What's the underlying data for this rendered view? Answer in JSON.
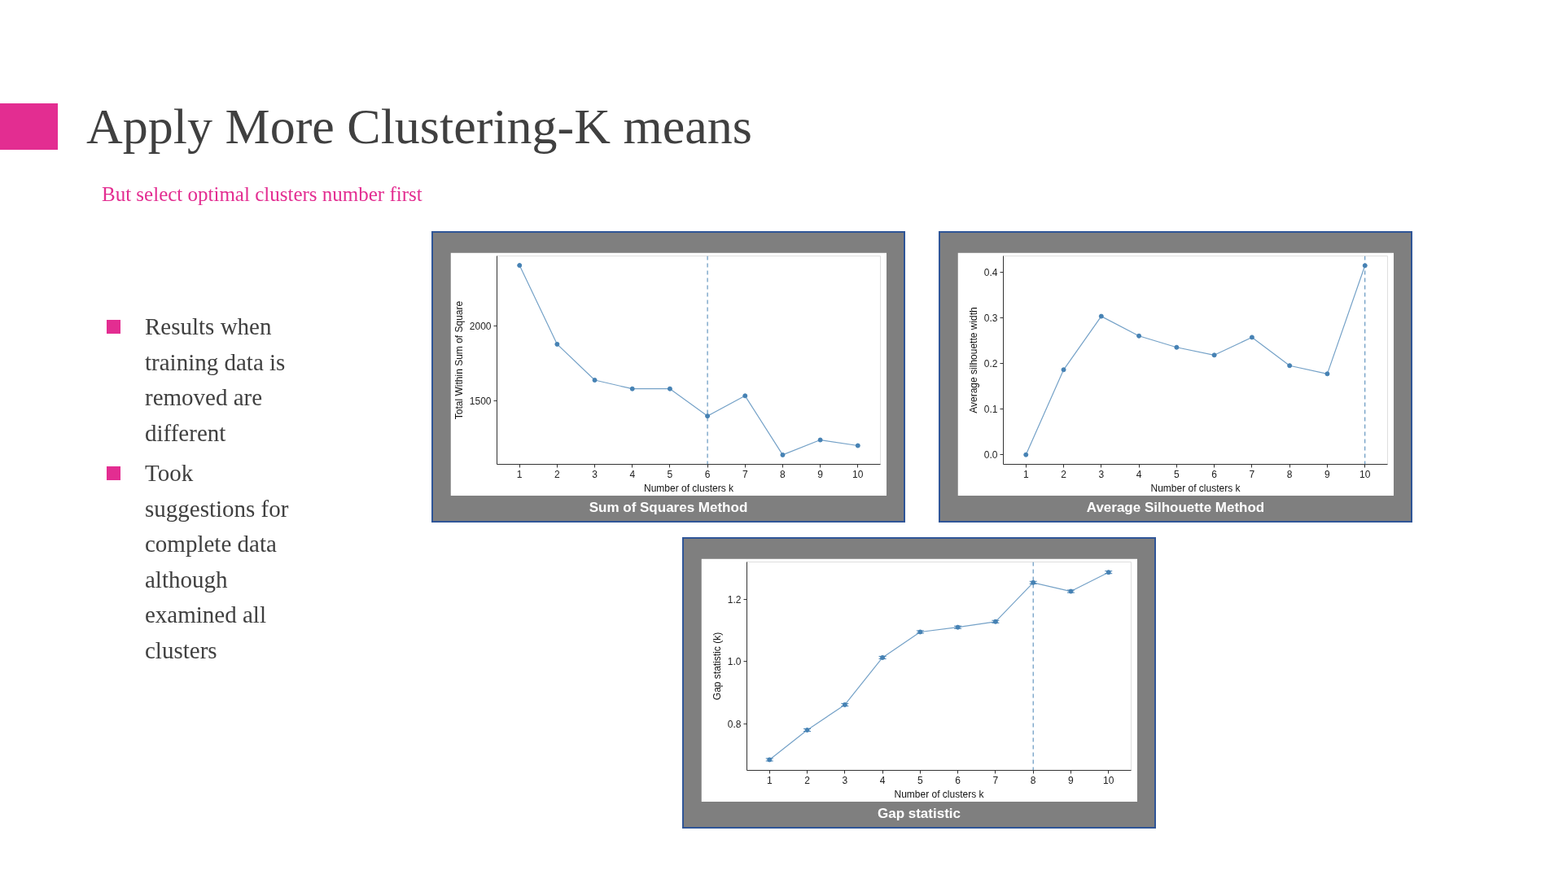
{
  "chart_data": [
    {
      "type": "other",
      "title": "Apply More Clustering-K means",
      "subtitle": "But select optimal clusters number first",
      "annotations": [
        "Results when training data is removed are different",
        "Took suggestions for complete data although examined all clusters"
      ]
    },
    {
      "type": "line",
      "title": "Sum of Squares Method",
      "xlabel": "Number of clusters k",
      "ylabel": "Total Within Sum of Square",
      "x": [
        1,
        2,
        3,
        4,
        5,
        6,
        7,
        8,
        9,
        10
      ],
      "xlim": [
        0.4,
        10.6
      ],
      "xticks": [
        1,
        2,
        3,
        4,
        5,
        6,
        7,
        8,
        9,
        10
      ],
      "ylim": [
        1075,
        2468
      ],
      "yticks": [
        1500,
        2000
      ],
      "marker": "circle",
      "series": [
        {
          "color": "#4682b4",
          "values": [
            2405,
            1878,
            1638,
            1580,
            1580,
            1398,
            1533,
            1138,
            1238,
            1200
          ]
        }
      ],
      "ref_lines": [
        {
          "axis": "x",
          "value": 6,
          "color": "#4682b4",
          "line_style": "dashed"
        }
      ]
    },
    {
      "type": "line",
      "title": "Average Silhouette Method",
      "xlabel": "Number of clusters k",
      "ylabel": "Average silhouette width",
      "x": [
        1,
        2,
        3,
        4,
        5,
        6,
        7,
        8,
        9,
        10
      ],
      "xlim": [
        0.4,
        10.6
      ],
      "xticks": [
        1,
        2,
        3,
        4,
        5,
        6,
        7,
        8,
        9,
        10
      ],
      "ylim": [
        -0.021,
        0.435
      ],
      "yticks": [
        {
          "value": 0,
          "label": "0.0"
        },
        0.1,
        0.2,
        0.3,
        0.4
      ],
      "marker": "circle",
      "series": [
        {
          "color": "#4682b4",
          "values": [
            0.0,
            0.186,
            0.303,
            0.26,
            0.235,
            0.218,
            0.257,
            0.195,
            0.177,
            0.414
          ]
        }
      ],
      "ref_lines": [
        {
          "axis": "x",
          "value": 10,
          "color": "#4682b4",
          "line_style": "dashed"
        }
      ]
    },
    {
      "type": "line",
      "title": "Gap statistic",
      "xlabel": "Number of clusters k",
      "ylabel": "Gap statistic (k)",
      "x": [
        1,
        2,
        3,
        4,
        5,
        6,
        7,
        8,
        9,
        10
      ],
      "xlim": [
        0.4,
        10.6
      ],
      "xticks": [
        1,
        2,
        3,
        4,
        5,
        6,
        7,
        8,
        9,
        10
      ],
      "ylim": [
        0.652,
        1.319
      ],
      "yticks": [
        0.8,
        {
          "value": 1,
          "label": "1.0"
        },
        1.2
      ],
      "marker": "circle",
      "series": [
        {
          "color": "#4682b4",
          "values": [
            0.686,
            0.781,
            0.862,
            1.013,
            1.095,
            1.11,
            1.128,
            1.253,
            1.225,
            1.286
          ],
          "errors": [
            0.004,
            0.004,
            0.004,
            0.004,
            0.004,
            0.004,
            0.004,
            0.004,
            0.004,
            0.004
          ]
        }
      ],
      "ref_lines": [
        {
          "axis": "x",
          "value": 8,
          "color": "#4682b4",
          "line_style": "dashed"
        }
      ]
    }
  ]
}
